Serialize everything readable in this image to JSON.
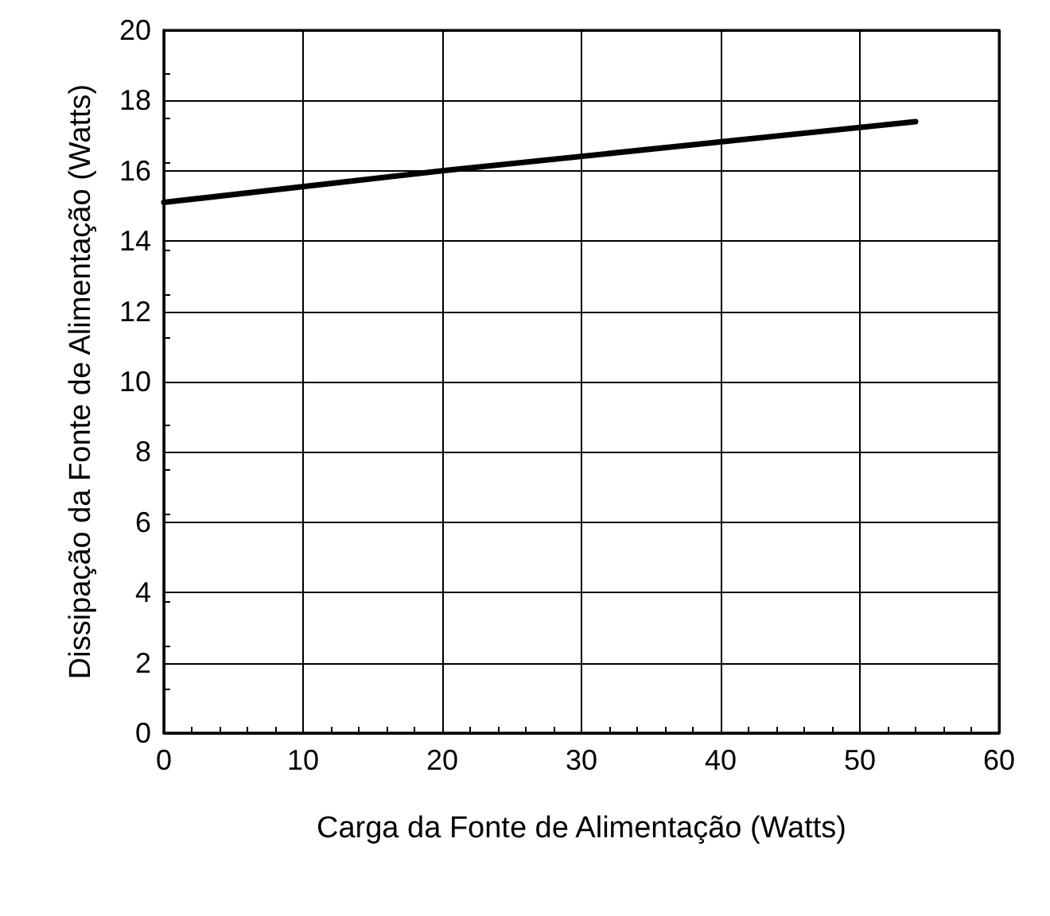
{
  "chart_data": {
    "type": "line",
    "xlabel": "Carga da Fonte de Alimentação (Watts)",
    "ylabel": "Dissipação da Fonte de Alimentação (Watts)",
    "x": [
      0,
      20,
      54
    ],
    "series": [
      {
        "color": "#000000",
        "values": [
          15.1,
          16,
          17.4
        ]
      }
    ],
    "xlim": [
      0,
      60
    ],
    "xticks": [
      0,
      10,
      20,
      30,
      40,
      50,
      60
    ],
    "ylim": [
      0,
      20
    ],
    "yticks": [
      0,
      2,
      4,
      6,
      8,
      10,
      12,
      14,
      16,
      18,
      20
    ],
    "grid": true,
    "marker": "none",
    "line_style": "solid"
  }
}
